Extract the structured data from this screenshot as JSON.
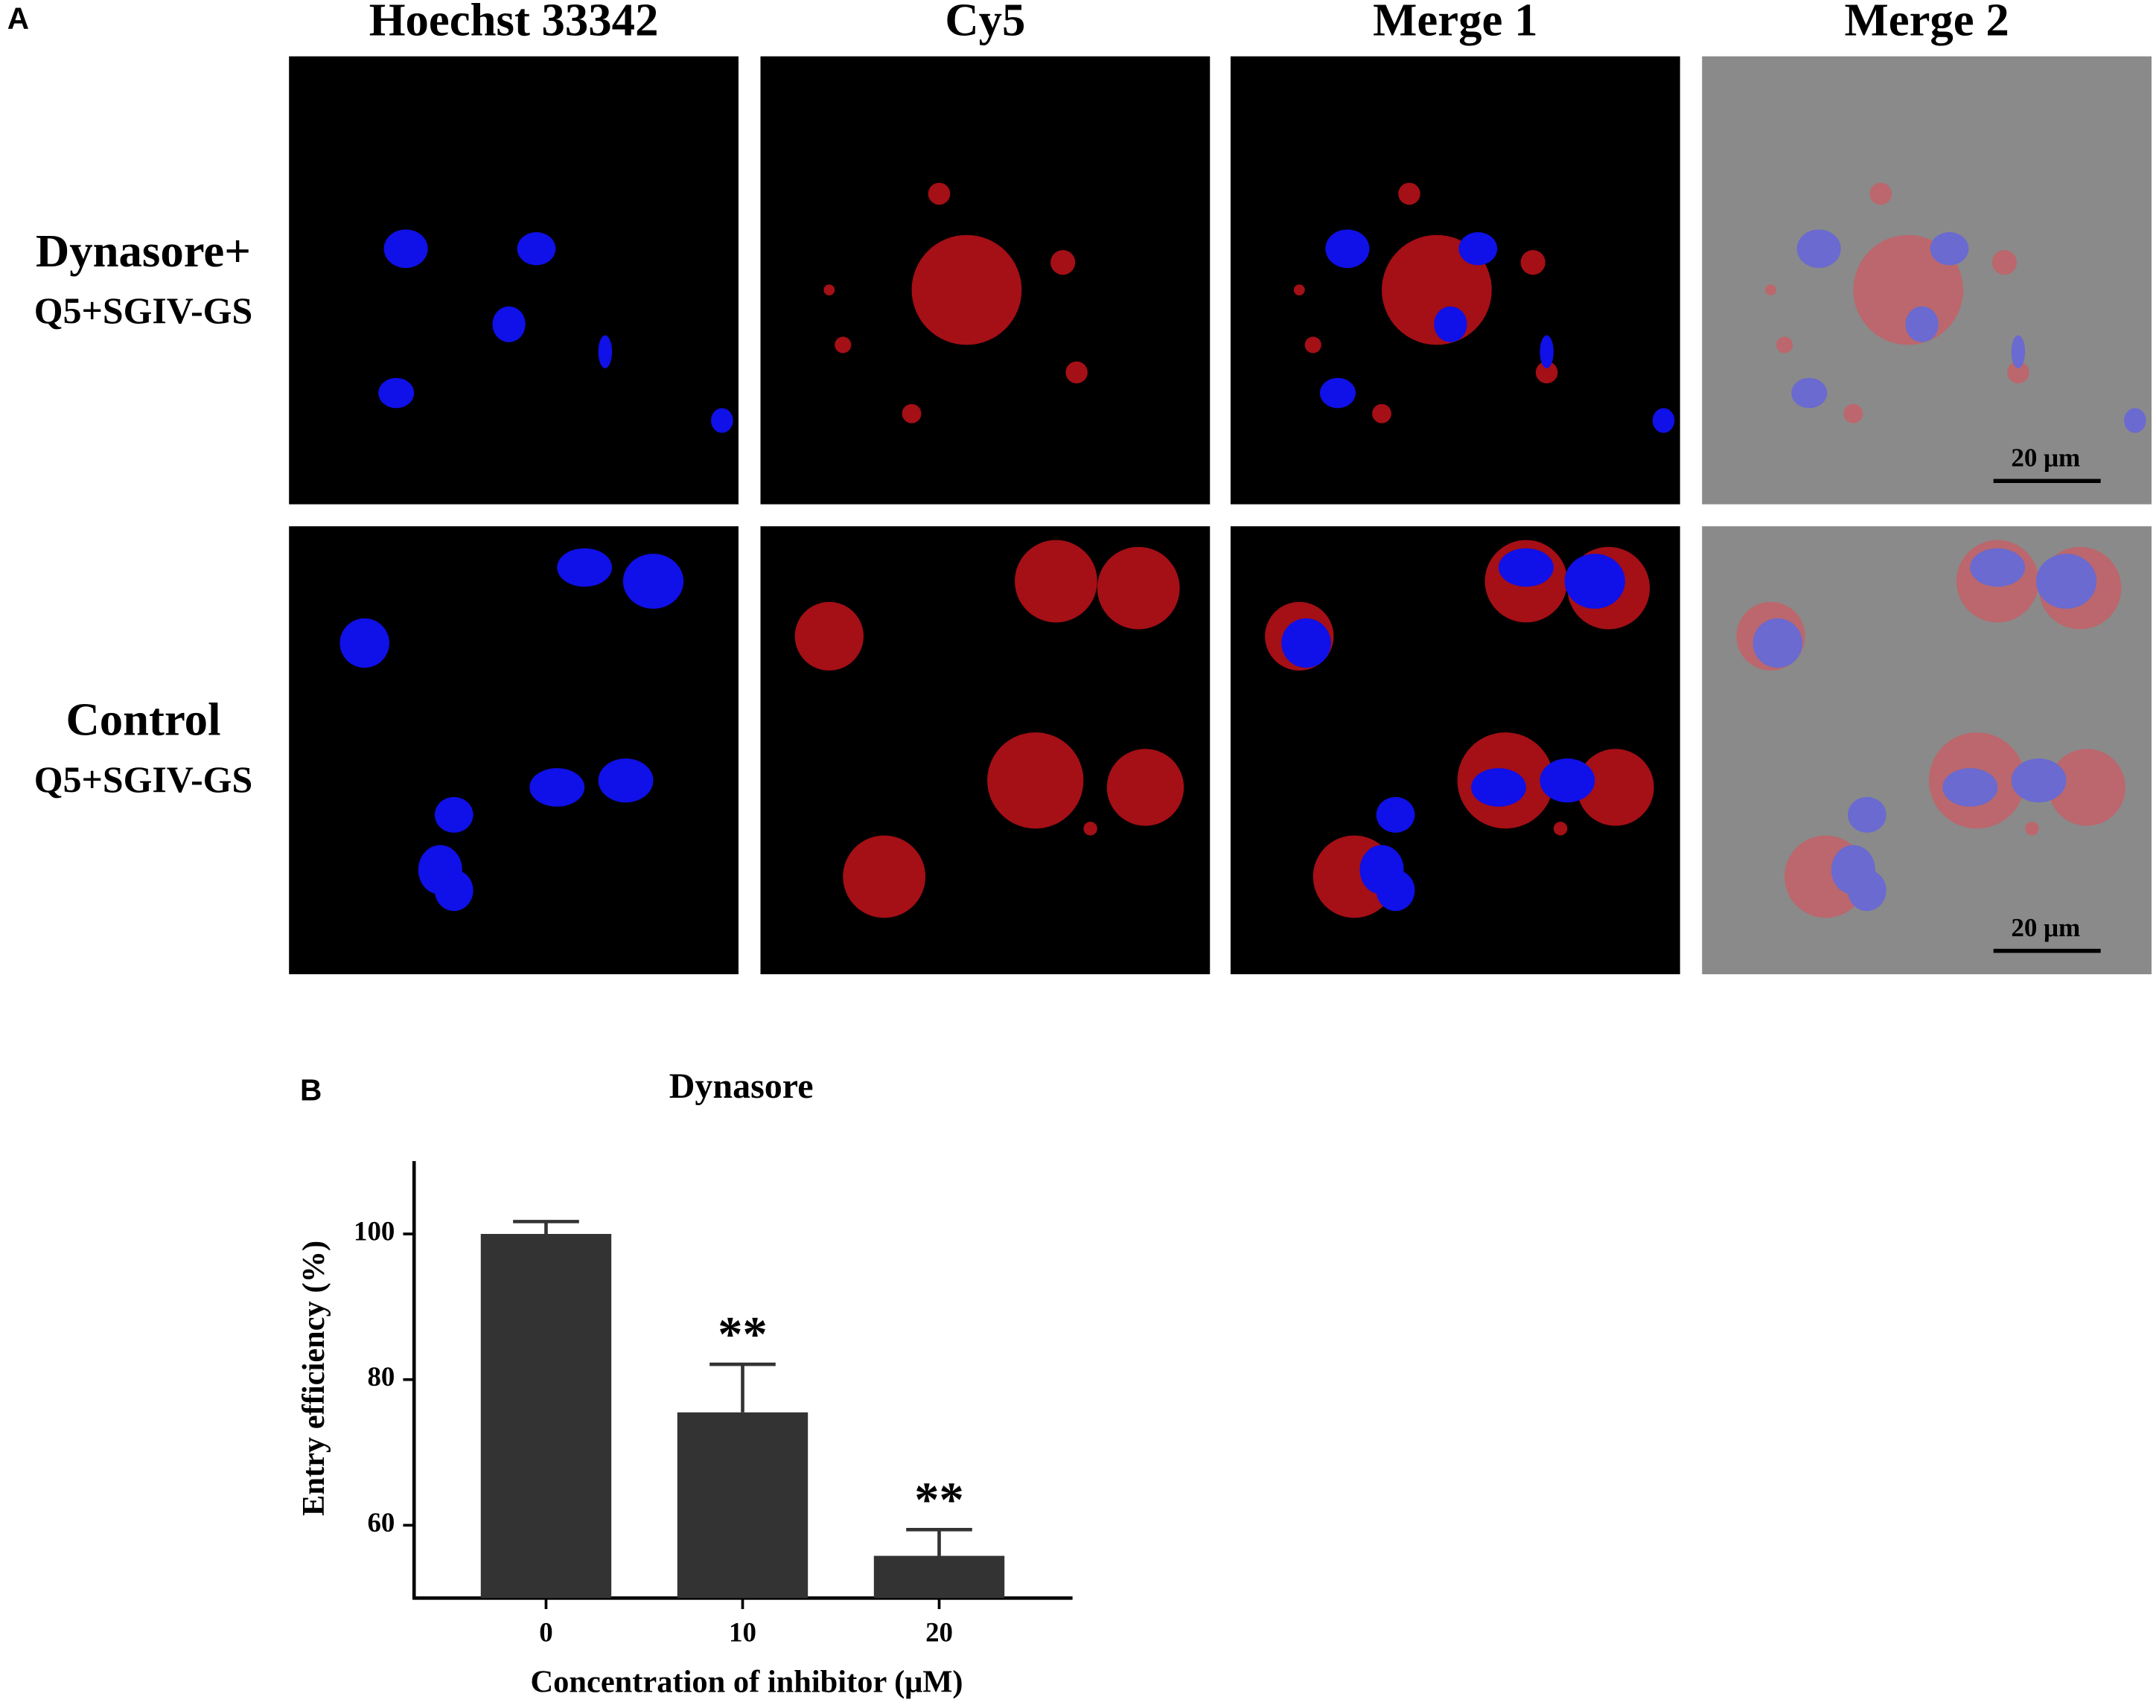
{
  "panel_a": {
    "label": "A",
    "columns": [
      "Hoechst 33342",
      "Cy5",
      "Merge 1",
      "Merge 2"
    ],
    "rows": [
      {
        "line1": "Dynasore+",
        "line2": "Q5+SGIV-GS",
        "scale_bar": "20 μm"
      },
      {
        "line1": "Control",
        "line2": "Q5+SGIV-GS",
        "scale_bar": "20 μm"
      }
    ]
  },
  "panel_b": {
    "label": "B"
  },
  "chart_data": {
    "type": "bar",
    "title": "Dynasore",
    "x_label": "Concentration of inhibitor (μM)",
    "y_label": "Entry efficiency (%)",
    "categories": [
      "0",
      "10",
      "20"
    ],
    "values": [
      100,
      75.5,
      55.8
    ],
    "errors": [
      1.7,
      6.6,
      3.6
    ],
    "color": "#333333",
    "ylim": [
      50,
      110
    ],
    "yticks": [
      60,
      80,
      100
    ],
    "annotations": [
      {
        "x": "10",
        "text": "**"
      },
      {
        "x": "20",
        "text": "**"
      }
    ]
  }
}
